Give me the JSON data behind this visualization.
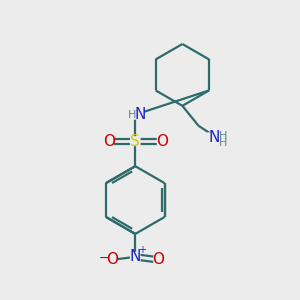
{
  "background_color": "#ececec",
  "bond_color": "#2d6b6b",
  "bond_width": 1.6,
  "S_color": "#cccc00",
  "N_color": "#2222cc",
  "O_color": "#cc0000",
  "H_color": "#5a8a8a",
  "figsize": [
    3.0,
    3.0
  ],
  "dpi": 100,
  "xlim": [
    0,
    10
  ],
  "ylim": [
    0,
    10
  ]
}
